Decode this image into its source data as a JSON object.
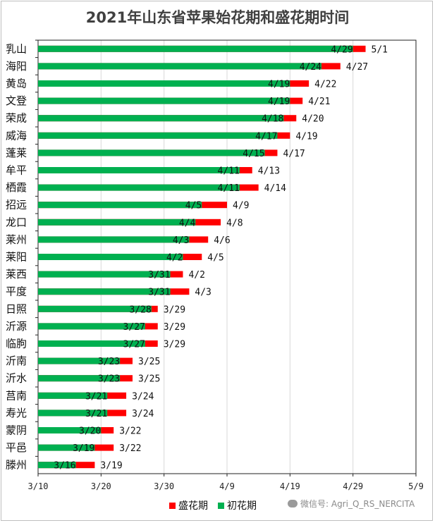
{
  "chart_data": {
    "type": "bar",
    "title": "2021年山东省苹果始花期和盛花期时间",
    "categories": [
      "乳山",
      "海阳",
      "黄岛",
      "文登",
      "荣成",
      "威海",
      "蓬莱",
      "牟平",
      "栖霞",
      "招远",
      "龙口",
      "莱州",
      "莱阳",
      "莱西",
      "平度",
      "日照",
      "沂源",
      "临朐",
      "沂南",
      "沂水",
      "莒南",
      "寿光",
      "蒙阴",
      "平邑",
      "滕州"
    ],
    "series": [
      {
        "name": "初花期",
        "color": "#00b050",
        "values": [
          "2021-04-29",
          "2021-04-24",
          "2021-04-19",
          "2021-04-19",
          "2021-04-18",
          "2021-04-17",
          "2021-04-15",
          "2021-04-11",
          "2021-04-11",
          "2021-04-05",
          "2021-04-04",
          "2021-04-03",
          "2021-04-02",
          "2021-03-31",
          "2021-03-31",
          "2021-03-28",
          "2021-03-27",
          "2021-03-27",
          "2021-03-23",
          "2021-03-23",
          "2021-03-21",
          "2021-03-21",
          "2021-03-20",
          "2021-03-19",
          "2021-03-16"
        ],
        "labels": [
          "4/29",
          "4/24",
          "4/19",
          "4/19",
          "4/18",
          "4/17",
          "4/15",
          "4/11",
          "4/11",
          "4/5",
          "4/4",
          "4/3",
          "4/2",
          "3/31",
          "3/31",
          "3/28",
          "3/27",
          "3/27",
          "3/23",
          "3/23",
          "3/21",
          "3/21",
          "3/20",
          "3/19",
          "3/16"
        ]
      },
      {
        "name": "盛花期",
        "color": "#ff0000",
        "values": [
          "2021-05-01",
          "2021-04-27",
          "2021-04-22",
          "2021-04-21",
          "2021-04-20",
          "2021-04-19",
          "2021-04-17",
          "2021-04-13",
          "2021-04-14",
          "2021-04-09",
          "2021-04-08",
          "2021-04-06",
          "2021-04-05",
          "2021-04-02",
          "2021-04-03",
          "2021-03-29",
          "2021-03-29",
          "2021-03-29",
          "2021-03-25",
          "2021-03-25",
          "2021-03-24",
          "2021-03-24",
          "2021-03-22",
          "2021-03-22",
          "2021-03-19"
        ],
        "labels": [
          "5/1",
          "4/27",
          "4/22",
          "4/21",
          "4/20",
          "4/19",
          "4/17",
          "4/13",
          "4/14",
          "4/9",
          "4/8",
          "4/6",
          "4/5",
          "4/2",
          "4/3",
          "3/29",
          "3/29",
          "3/29",
          "3/25",
          "3/25",
          "3/24",
          "3/24",
          "3/22",
          "3/22",
          "3/19"
        ]
      }
    ],
    "xlim": [
      "2021-03-10",
      "2021-05-09"
    ],
    "xticks": [
      "2021-03-10",
      "2021-03-20",
      "2021-03-30",
      "2021-04-09",
      "2021-04-19",
      "2021-04-29",
      "2021-05-09"
    ],
    "xtick_labels": [
      "3/10",
      "3/20",
      "3/30",
      "4/9",
      "4/19",
      "4/29",
      "5/9"
    ],
    "grid": "vertical",
    "legend_position": "bottom"
  },
  "legend": [
    {
      "label": "盛花期",
      "color": "#ff0000"
    },
    {
      "label": "初花期",
      "color": "#00b050"
    }
  ],
  "watermark": "微信号: Agri_Q_RS_NERCITA"
}
